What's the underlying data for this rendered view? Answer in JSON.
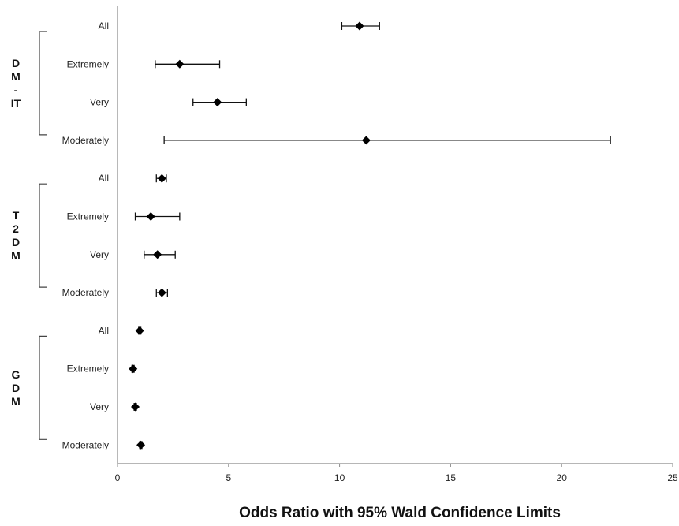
{
  "chart_data": {
    "type": "scatter",
    "xlabel": "Odds Ratio with 95% Wald Confidence Limits",
    "xlim": [
      0,
      25
    ],
    "xticks": [
      "0",
      "5",
      "10",
      "15",
      "20",
      "25"
    ],
    "grid": false,
    "groups": [
      {
        "label": [
          "D",
          "M",
          "-",
          "IT"
        ],
        "rows": [
          {
            "label": "All",
            "or": 10.9,
            "lower": 10.1,
            "upper": 11.8
          },
          {
            "label": "Extremely",
            "or": 2.8,
            "lower": 1.7,
            "upper": 4.6
          },
          {
            "label": "Very",
            "or": 4.5,
            "lower": 3.4,
            "upper": 5.8
          },
          {
            "label": "Moderately",
            "or": 11.2,
            "lower": 2.1,
            "upper": 22.2
          }
        ]
      },
      {
        "label": [
          "T",
          "2",
          "D",
          "M"
        ],
        "rows": [
          {
            "label": "All",
            "or": 2.0,
            "lower": 1.75,
            "upper": 2.2
          },
          {
            "label": "Extremely",
            "or": 1.5,
            "lower": 0.8,
            "upper": 2.8
          },
          {
            "label": "Very",
            "or": 1.8,
            "lower": 1.2,
            "upper": 2.6
          },
          {
            "label": "Moderately",
            "or": 2.0,
            "lower": 1.75,
            "upper": 2.25
          }
        ]
      },
      {
        "label": [
          "G",
          "D",
          "M"
        ],
        "rows": [
          {
            "label": "All",
            "or": 1.0,
            "lower": 0.95,
            "upper": 1.05
          },
          {
            "label": "Extremely",
            "or": 0.7,
            "lower": 0.65,
            "upper": 0.75
          },
          {
            "label": "Very",
            "or": 0.8,
            "lower": 0.75,
            "upper": 0.85
          },
          {
            "label": "Moderately",
            "or": 1.05,
            "lower": 1.0,
            "upper": 1.1
          }
        ]
      }
    ]
  }
}
